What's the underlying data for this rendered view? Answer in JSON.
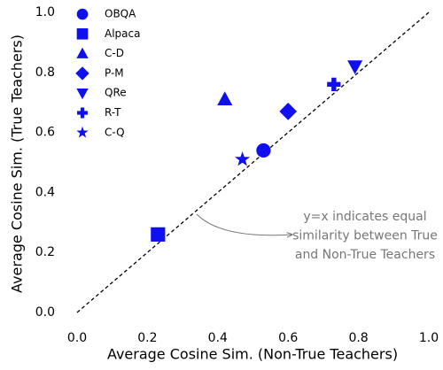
{
  "chart_data": {
    "type": "scatter",
    "xlabel": "Average Cosine Sim. (Non-True Teachers)",
    "ylabel": "Average Cosine Sim. (True Teachers)",
    "annotation": [
      "y=x indicates equal",
      "similarity between True",
      "and Non-True Teachers"
    ],
    "color": "#0f0fef",
    "xlim": [
      0,
      1
    ],
    "ylim": [
      0,
      1
    ],
    "xticks": [
      {
        "value": 0,
        "label": "0.0"
      },
      {
        "value": 0.2,
        "label": "0.2"
      },
      {
        "value": 0.4,
        "label": "0.4"
      },
      {
        "value": 0.6,
        "label": "0.6"
      },
      {
        "value": 0.8,
        "label": "0.8"
      },
      {
        "value": 1,
        "label": "1.0"
      }
    ],
    "yticks": [
      {
        "value": 0,
        "label": "0.0"
      },
      {
        "value": 0.2,
        "label": "0.2"
      },
      {
        "value": 0.4,
        "label": "0.4"
      },
      {
        "value": 0.6,
        "label": "0.6"
      },
      {
        "value": 0.8,
        "label": "0.8"
      },
      {
        "value": 1,
        "label": "1.0"
      }
    ],
    "legend": "upper left",
    "series": [
      {
        "name": "OBQA",
        "marker": "circle",
        "x": [
          0.53
        ],
        "values": [
          0.54
        ]
      },
      {
        "name": "Alpaca",
        "marker": "square",
        "x": [
          0.23
        ],
        "values": [
          0.26
        ]
      },
      {
        "name": "C-D",
        "marker": "triangle-up",
        "x": [
          0.42
        ],
        "values": [
          0.71
        ]
      },
      {
        "name": "P-M",
        "marker": "diamond",
        "x": [
          0.6
        ],
        "values": [
          0.67
        ]
      },
      {
        "name": "QRe",
        "marker": "triangle-down",
        "x": [
          0.79
        ],
        "values": [
          0.82
        ]
      },
      {
        "name": "R-T",
        "marker": "plus",
        "x": [
          0.73
        ],
        "values": [
          0.76
        ]
      },
      {
        "name": "C-Q",
        "marker": "star",
        "x": [
          0.47
        ],
        "values": [
          0.51
        ]
      }
    ]
  }
}
